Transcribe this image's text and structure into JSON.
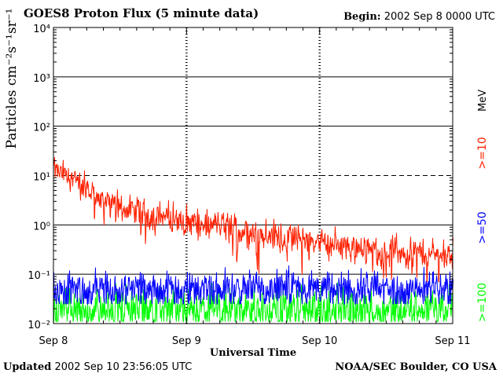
{
  "header": {
    "title": "GOES8 Proton Flux (5 minute data)",
    "begin_label": "Begin:",
    "begin_value": "2002 Sep 8 0000 UTC"
  },
  "footer": {
    "updated_label": "Updated",
    "updated_value": "2002 Sep 10 23:56:05 UTC",
    "credit": "NOAA/SEC Boulder, CO USA"
  },
  "colors": {
    "ge10": "#ff2000",
    "ge50": "#0000ff",
    "ge100": "#00ff00",
    "axis": "#000000"
  },
  "chart_data": {
    "type": "line",
    "title": "GOES8 Proton Flux (5 minute data)",
    "xlabel": "Universal Time",
    "ylabel": "Particles cm⁻²s⁻¹sr⁻¹",
    "yscale": "log",
    "ylim": [
      0.01,
      10000
    ],
    "ytick_labels": [
      "10⁻²",
      "10⁻¹",
      "10⁰",
      "10¹",
      "10²",
      "10³",
      "10⁴"
    ],
    "xlim": [
      "2002-09-08 00:00",
      "2002-09-11 00:00"
    ],
    "xtick_labels": [
      "Sep 8",
      "Sep 9",
      "Sep 10",
      "Sep 11"
    ],
    "unit_label": "MeV",
    "grid": true,
    "legend_position": "right",
    "series": [
      {
        "name": ">=10",
        "color": "#ff2000",
        "x": [
          "2002-09-08 00:00",
          "2002-09-08 03:00",
          "2002-09-08 06:00",
          "2002-09-08 09:00",
          "2002-09-08 12:00",
          "2002-09-08 15:00",
          "2002-09-08 18:00",
          "2002-09-08 21:00",
          "2002-09-09 00:00",
          "2002-09-09 03:00",
          "2002-09-09 06:00",
          "2002-09-09 09:00",
          "2002-09-09 12:00",
          "2002-09-09 15:00",
          "2002-09-09 18:00",
          "2002-09-09 21:00",
          "2002-09-10 00:00",
          "2002-09-10 03:00",
          "2002-09-10 06:00",
          "2002-09-10 09:00",
          "2002-09-10 12:00",
          "2002-09-10 15:00",
          "2002-09-10 18:00",
          "2002-09-10 21:00",
          "2002-09-11 00:00"
        ],
        "values": [
          13,
          9,
          5.5,
          3,
          2.3,
          1.8,
          1.6,
          1.4,
          1.2,
          1.0,
          0.95,
          0.8,
          0.7,
          0.62,
          0.55,
          0.5,
          0.45,
          0.4,
          0.35,
          0.32,
          0.3,
          0.28,
          0.27,
          0.25,
          0.24
        ]
      },
      {
        "name": ">=50",
        "color": "#0000ff",
        "x": [
          "2002-09-08 00:00",
          "2002-09-11 00:00"
        ],
        "values": [
          0.05,
          0.05
        ]
      },
      {
        "name": ">=100",
        "color": "#00ff00",
        "x": [
          "2002-09-08 00:00",
          "2002-09-11 00:00"
        ],
        "values": [
          0.02,
          0.02
        ]
      }
    ]
  }
}
